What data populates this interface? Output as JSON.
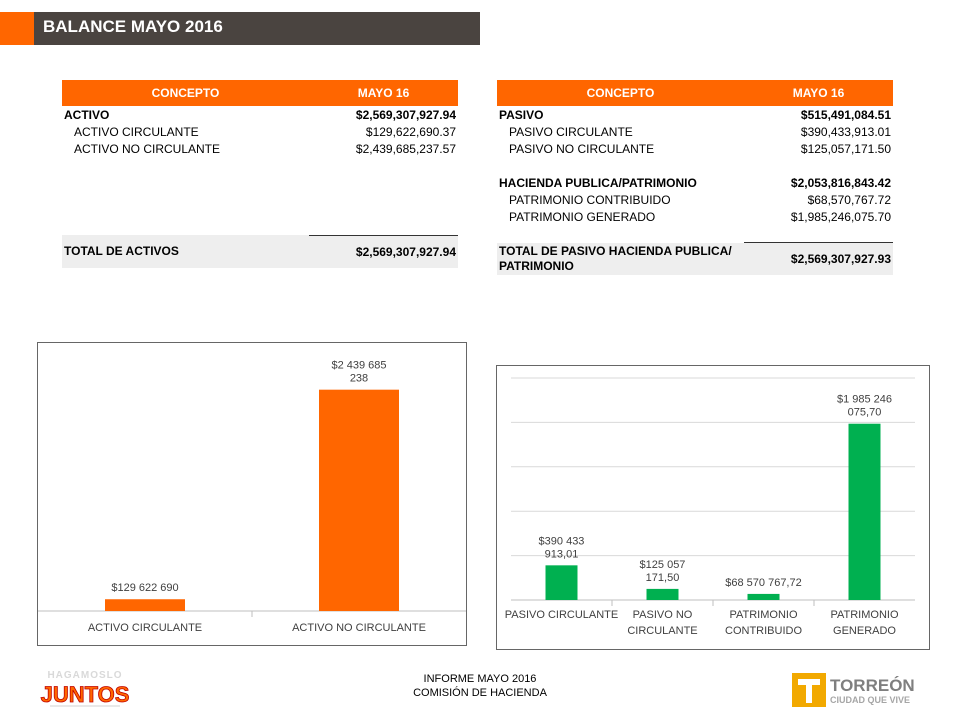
{
  "header": {
    "title": "BALANCE MAYO 2016"
  },
  "colors": {
    "orange": "#ff6600",
    "dark": "#4a4440",
    "green": "#00b050"
  },
  "left_table": {
    "headers": [
      "CONCEPTO",
      "MAYO 16"
    ],
    "rows": [
      {
        "label": "ACTIVO",
        "value": "$2,569,307,927.94"
      },
      {
        "label": "ACTIVO  CIRCULANTE",
        "value": "$129,622,690.37"
      },
      {
        "label": "ACTIVO  NO CIRCULANTE",
        "value": "$2,439,685,237.57"
      }
    ],
    "total": {
      "label": "TOTAL  DE ACTIVOS",
      "value": "$2,569,307,927.94"
    }
  },
  "right_table": {
    "headers": [
      "CONCEPTO",
      "MAYO 16"
    ],
    "rows": [
      {
        "label": "PASIVO",
        "value": "$515,491,084.51"
      },
      {
        "label": "PASIVO  CIRCULANTE",
        "value": "$390,433,913.01"
      },
      {
        "label": "PASIVO  NO CIRCULANTE",
        "value": "$125,057,171.50"
      },
      {
        "label": "HACIENDA  PUBLICA/PATRIMONIO",
        "value": "$2,053,816,843.42"
      },
      {
        "label": "PATRIMONIO  CONTRIBUIDO",
        "value": "$68,570,767.72"
      },
      {
        "label": "PATRIMONIO  GENERADO",
        "value": "$1,985,246,075.70"
      }
    ],
    "total": {
      "label": "TOTAL  DE PASIVO HACIENDA PUBLICA/ PATRIMONIO",
      "value": "$2,569,307,927.93"
    }
  },
  "chart_data": [
    {
      "type": "bar",
      "categories": [
        "ACTIVO CIRCULANTE",
        "ACTIVO NO CIRCULANTE"
      ],
      "values": [
        129622690,
        2439685238
      ],
      "data_labels": [
        "$129 622 690",
        "$2 439 685\n238"
      ],
      "color": "#ff6600",
      "title": "",
      "xlabel": "",
      "ylabel": "",
      "grid": false
    },
    {
      "type": "bar",
      "categories": [
        "PASIVO CIRCULANTE",
        "PASIVO NO\nCIRCULANTE",
        "PATRIMONIO\nCONTRIBUIDO",
        "PATRIMONIO\nGENERADO"
      ],
      "values": [
        390433913.01,
        125057171.5,
        68570767.72,
        1985246075.7
      ],
      "data_labels": [
        "$390 433\n913,01",
        "$125 057\n171,50",
        "$68 570 767,72",
        "$1 985 246\n075,70"
      ],
      "color": "#00b050",
      "title": "",
      "xlabel": "",
      "ylabel": "",
      "grid": true,
      "ylim": [
        0,
        2500000000
      ]
    }
  ],
  "footer": {
    "line1": "INFORME MAYO 2016",
    "line2": "COMISIÓN DE HACIENDA"
  },
  "logos": {
    "left": "HAGAMOSLO JUNTOS",
    "right_main": "TORREÓN",
    "right_sub": "CIUDAD QUE VIVE"
  }
}
